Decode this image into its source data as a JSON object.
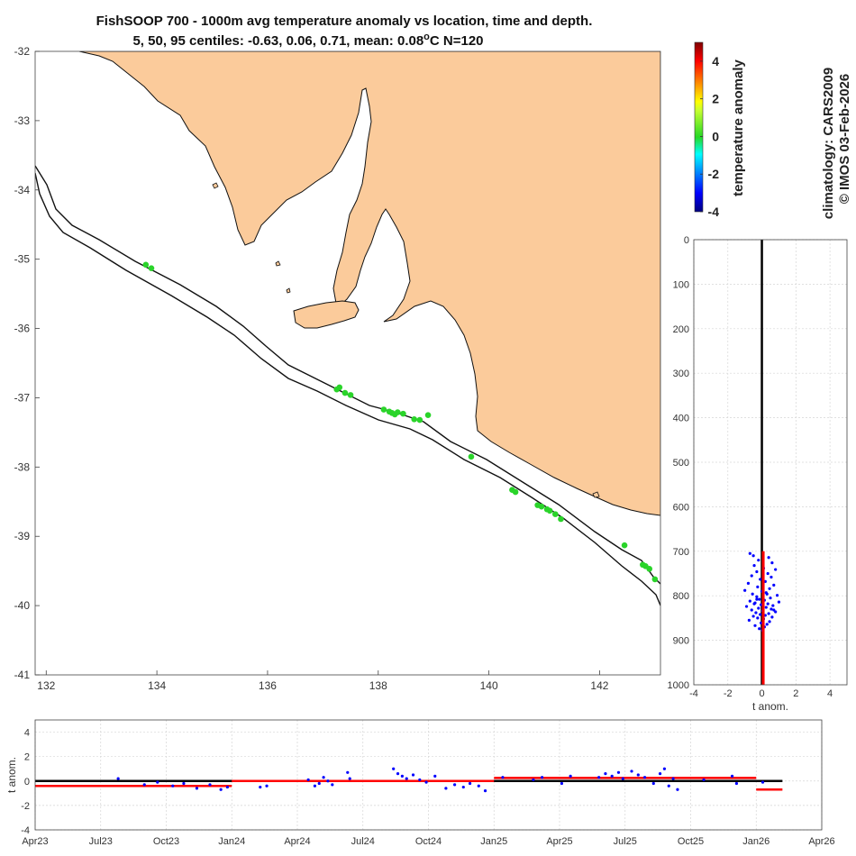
{
  "title": {
    "line1": "FishSOOP 700 - 1000m avg temperature anomaly vs location, time and depth.",
    "line2_prefix": "5, 50, 95 centiles: -0.63, 0.06, 0.71, mean: 0.08",
    "line2_degree": "o",
    "line2_suffix": "C N=120"
  },
  "credits": {
    "climatology": "climatology: CARS2009",
    "copyright": "© IMOS 03-Feb-2026"
  },
  "colors": {
    "land": "#fbcb9b",
    "coast": "#111111",
    "profile_dot": "#0000ff",
    "mean_line": "#ff0000",
    "zero_line": "#000000"
  },
  "chart_data": [
    {
      "id": "map",
      "type": "scatter",
      "title": "",
      "xlabel": "",
      "ylabel": "",
      "xlim": [
        131.8,
        143.1
      ],
      "ylim": [
        -41,
        -32
      ],
      "xticks": [
        132,
        134,
        136,
        138,
        140,
        142
      ],
      "yticks": [
        -32,
        -33,
        -34,
        -35,
        -36,
        -37,
        -38,
        -39,
        -40,
        -41
      ],
      "grid": false,
      "series": [
        {
          "name": "observations",
          "color": "#2ad42a",
          "points": [
            [
              133.8,
              -35.08
            ],
            [
              133.9,
              -35.13
            ],
            [
              137.25,
              -36.88
            ],
            [
              137.3,
              -36.85
            ],
            [
              137.4,
              -36.93
            ],
            [
              137.5,
              -36.96
            ],
            [
              138.1,
              -37.17
            ],
            [
              138.2,
              -37.2
            ],
            [
              138.25,
              -37.22
            ],
            [
              138.3,
              -37.24
            ],
            [
              138.35,
              -37.21
            ],
            [
              138.45,
              -37.23
            ],
            [
              138.65,
              -37.31
            ],
            [
              138.75,
              -37.32
            ],
            [
              138.9,
              -37.25
            ],
            [
              139.68,
              -37.85
            ],
            [
              140.42,
              -38.33
            ],
            [
              140.48,
              -38.36
            ],
            [
              140.88,
              -38.55
            ],
            [
              140.95,
              -38.57
            ],
            [
              141.05,
              -38.61
            ],
            [
              141.1,
              -38.63
            ],
            [
              141.2,
              -38.68
            ],
            [
              141.3,
              -38.75
            ],
            [
              142.45,
              -39.13
            ],
            [
              142.78,
              -39.41
            ],
            [
              142.83,
              -39.43
            ],
            [
              142.9,
              -39.47
            ],
            [
              143.0,
              -39.62
            ]
          ]
        }
      ]
    },
    {
      "id": "colorbar",
      "type": "heatmap",
      "title": "",
      "ylabel": "temperature anomaly",
      "ylim": [
        -4,
        5
      ],
      "yticks": [
        -4,
        -2,
        0,
        2,
        4
      ],
      "colormap": "jet"
    },
    {
      "id": "depth",
      "type": "scatter",
      "title": "",
      "xlabel": "t anom.",
      "ylabel": "",
      "xlim": [
        -4,
        5
      ],
      "ylim": [
        0,
        1000
      ],
      "xticks": [
        -4,
        -2,
        0,
        2,
        4
      ],
      "yticks": [
        0,
        100,
        200,
        300,
        400,
        500,
        600,
        700,
        800,
        900,
        1000
      ],
      "grid": true,
      "mean_line": {
        "x": 0.08,
        "from": 700,
        "to": 1000
      },
      "zero_line": {
        "x": 0
      },
      "series": [
        {
          "name": "anomalies",
          "points": [
            [
              -0.7,
              705
            ],
            [
              -0.5,
              710
            ],
            [
              0.4,
              714
            ],
            [
              -0.2,
              720
            ],
            [
              0.6,
              726
            ],
            [
              -0.45,
              732
            ],
            [
              0.1,
              738
            ],
            [
              0.8,
              741
            ],
            [
              -0.3,
              746
            ],
            [
              0.35,
              750
            ],
            [
              -0.6,
              755
            ],
            [
              0.55,
              758
            ],
            [
              -0.1,
              763
            ],
            [
              0.2,
              768
            ],
            [
              -0.8,
              772
            ],
            [
              0.7,
              776
            ],
            [
              -0.25,
              780
            ],
            [
              0.45,
              784
            ],
            [
              -1.0,
              788
            ],
            [
              0.0,
              790
            ],
            [
              0.25,
              793
            ],
            [
              -0.55,
              796
            ],
            [
              0.9,
              799
            ],
            [
              -0.3,
              802
            ],
            [
              0.5,
              805
            ],
            [
              -0.15,
              808
            ],
            [
              0.15,
              810
            ],
            [
              -0.7,
              812
            ],
            [
              1.0,
              814
            ],
            [
              -0.4,
              816
            ],
            [
              0.35,
              818
            ],
            [
              -0.05,
              820
            ],
            [
              0.65,
              822
            ],
            [
              -0.9,
              824
            ],
            [
              0.25,
              826
            ],
            [
              -0.2,
              828
            ],
            [
              0.55,
              830
            ],
            [
              -0.6,
              832
            ],
            [
              0.05,
              834
            ],
            [
              0.8,
              836
            ],
            [
              -0.35,
              838
            ],
            [
              0.4,
              840
            ],
            [
              -0.1,
              842
            ],
            [
              0.2,
              844
            ],
            [
              -0.5,
              846
            ],
            [
              0.6,
              848
            ],
            [
              -0.25,
              850
            ],
            [
              0.1,
              852
            ],
            [
              -0.75,
              855
            ],
            [
              0.45,
              858
            ],
            [
              -0.05,
              861
            ],
            [
              0.3,
              864
            ],
            [
              -0.4,
              867
            ],
            [
              0.15,
              870
            ],
            [
              -0.15,
              874
            ],
            [
              0.05,
              878
            ],
            [
              -0.3,
              808
            ],
            [
              0.7,
              832
            ],
            [
              -0.45,
              818
            ],
            [
              0.3,
              796
            ]
          ]
        }
      ]
    },
    {
      "id": "time",
      "type": "scatter",
      "title": "",
      "xlabel": "",
      "ylabel": "t anom.",
      "xlim": [
        0,
        36
      ],
      "ylim": [
        -4,
        5
      ],
      "xticks": [
        0,
        3,
        6,
        9,
        12,
        15,
        18,
        21,
        24,
        27,
        30,
        33,
        36
      ],
      "xtick_labels": [
        "Apr23",
        "Jul23",
        "Oct23",
        "Jan24",
        "Apr24",
        "Jul24",
        "Oct24",
        "Jan25",
        "Apr25",
        "Jul25",
        "Oct25",
        "Jan26",
        "Apr26"
      ],
      "yticks": [
        -4,
        -2,
        0,
        2,
        4
      ],
      "grid": true,
      "zero_line": {
        "from": 0,
        "to": 34.2
      },
      "monthly_means": [
        {
          "from": 0,
          "to": 9,
          "value": -0.4
        },
        {
          "from": 9,
          "to": 21,
          "value": 0.0
        },
        {
          "from": 21,
          "to": 33,
          "value": 0.25
        },
        {
          "from": 33,
          "to": 34.2,
          "value": -0.7
        }
      ],
      "series": [
        {
          "name": "observations",
          "points": [
            [
              3.8,
              0.2
            ],
            [
              5.0,
              -0.3
            ],
            [
              5.6,
              -0.1
            ],
            [
              6.3,
              -0.4
            ],
            [
              6.8,
              -0.2
            ],
            [
              7.4,
              -0.6
            ],
            [
              8.0,
              -0.3
            ],
            [
              8.5,
              -0.7
            ],
            [
              8.8,
              -0.5
            ],
            [
              10.3,
              -0.5
            ],
            [
              10.6,
              -0.4
            ],
            [
              12.5,
              0.1
            ],
            [
              12.8,
              -0.4
            ],
            [
              13.0,
              -0.2
            ],
            [
              13.2,
              0.3
            ],
            [
              13.4,
              0.0
            ],
            [
              13.6,
              -0.3
            ],
            [
              14.3,
              0.7
            ],
            [
              14.4,
              0.2
            ],
            [
              16.4,
              1.0
            ],
            [
              16.6,
              0.6
            ],
            [
              16.8,
              0.4
            ],
            [
              17.0,
              0.2
            ],
            [
              17.3,
              0.5
            ],
            [
              17.6,
              0.1
            ],
            [
              17.9,
              -0.1
            ],
            [
              18.3,
              0.4
            ],
            [
              18.8,
              -0.6
            ],
            [
              19.2,
              -0.3
            ],
            [
              19.6,
              -0.5
            ],
            [
              19.9,
              -0.2
            ],
            [
              20.3,
              -0.4
            ],
            [
              20.6,
              -0.8
            ],
            [
              21.4,
              0.3
            ],
            [
              22.8,
              0.1
            ],
            [
              23.2,
              0.3
            ],
            [
              24.1,
              -0.2
            ],
            [
              24.5,
              0.4
            ],
            [
              25.8,
              0.3
            ],
            [
              26.1,
              0.6
            ],
            [
              26.4,
              0.4
            ],
            [
              26.7,
              0.7
            ],
            [
              26.9,
              0.2
            ],
            [
              27.3,
              0.8
            ],
            [
              27.6,
              0.5
            ],
            [
              27.9,
              0.3
            ],
            [
              28.3,
              -0.2
            ],
            [
              28.6,
              0.6
            ],
            [
              28.8,
              1.0
            ],
            [
              29.0,
              -0.4
            ],
            [
              29.2,
              0.2
            ],
            [
              29.4,
              -0.7
            ],
            [
              30.6,
              0.1
            ],
            [
              31.9,
              0.4
            ],
            [
              32.1,
              -0.2
            ],
            [
              33.3,
              -0.1
            ]
          ]
        }
      ]
    }
  ]
}
